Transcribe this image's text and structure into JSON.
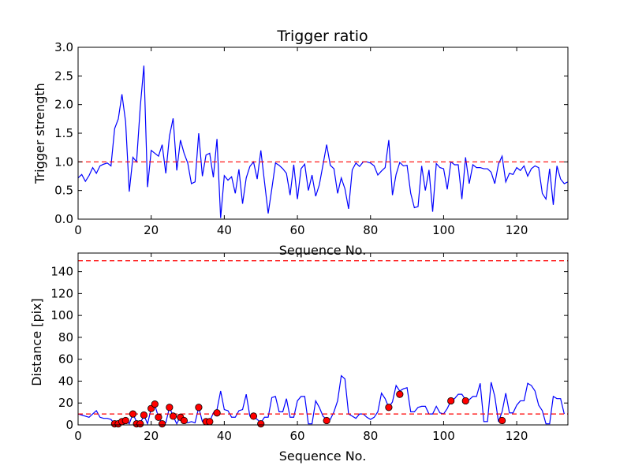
{
  "chart_data": [
    {
      "type": "line",
      "title": "Trigger ratio",
      "xlabel": "Sequence No.",
      "ylabel": "Trigger strength",
      "xlim": [
        0,
        134
      ],
      "ylim": [
        0,
        3.0
      ],
      "xticks": [
        0,
        20,
        40,
        60,
        80,
        100,
        120
      ],
      "yticks": [
        0.0,
        0.5,
        1.0,
        1.5,
        2.0,
        2.5,
        3.0
      ],
      "ytick_labels": [
        "0.0",
        "0.5",
        "1.0",
        "1.5",
        "2.0",
        "2.5",
        "3.0"
      ],
      "grid": false,
      "series": [
        {
          "style": "line",
          "color": "#0000ff",
          "values": [
            0.72,
            0.78,
            0.66,
            0.76,
            0.9,
            0.8,
            0.93,
            0.96,
            0.98,
            0.93,
            1.58,
            1.75,
            2.18,
            1.7,
            0.48,
            1.08,
            1.0,
            1.95,
            2.68,
            0.56,
            1.2,
            1.15,
            1.1,
            1.3,
            0.8,
            1.45,
            1.76,
            0.85,
            1.38,
            1.15,
            0.98,
            0.62,
            0.65,
            1.5,
            0.75,
            1.12,
            1.15,
            0.73,
            1.4,
            0.02,
            0.76,
            0.68,
            0.74,
            0.45,
            0.87,
            0.27,
            0.72,
            0.92,
            1.0,
            0.7,
            1.2,
            0.65,
            0.1,
            0.53,
            0.98,
            0.94,
            0.88,
            0.8,
            0.42,
            0.95,
            0.35,
            0.88,
            0.96,
            0.5,
            0.77,
            0.4,
            0.6,
            0.95,
            1.3,
            0.94,
            0.88,
            0.45,
            0.72,
            0.53,
            0.18,
            0.86,
            0.98,
            0.92,
            1.0,
            1.0,
            0.98,
            0.93,
            0.77,
            0.84,
            0.9,
            1.38,
            0.42,
            0.78,
            0.99,
            0.93,
            0.94,
            0.45,
            0.2,
            0.22,
            0.93,
            0.5,
            0.86,
            0.13,
            0.97,
            0.9,
            0.88,
            0.52,
            1.0,
            0.95,
            0.95,
            0.35,
            1.08,
            0.62,
            0.95,
            0.9,
            0.9,
            0.88,
            0.88,
            0.82,
            0.62,
            0.96,
            1.1,
            0.65,
            0.8,
            0.78,
            0.9,
            0.85,
            0.93,
            0.75,
            0.88,
            0.93,
            0.9,
            0.45,
            0.35,
            0.88,
            0.25,
            0.93,
            0.7,
            0.62,
            0.65
          ]
        },
        {
          "style": "dashed",
          "color": "#ff0000",
          "constant": 1.0
        }
      ]
    },
    {
      "type": "line",
      "title": "",
      "xlabel": "Sequence No.",
      "ylabel": "Distance [pix]",
      "xlim": [
        0,
        134
      ],
      "ylim": [
        0,
        157
      ],
      "xticks": [
        0,
        20,
        40,
        60,
        80,
        100,
        120
      ],
      "yticks": [
        0,
        20,
        40,
        60,
        80,
        100,
        120,
        140
      ],
      "ytick_labels": [
        "0",
        "20",
        "40",
        "60",
        "80",
        "100",
        "120",
        "140"
      ],
      "grid": false,
      "series": [
        {
          "style": "line",
          "color": "#0000ff",
          "values": [
            10,
            9,
            8,
            7,
            10,
            13,
            7,
            6,
            6,
            5,
            1,
            1,
            4,
            4,
            1,
            10,
            3,
            1,
            9,
            1,
            15,
            18,
            7,
            1,
            2,
            16,
            8,
            1,
            8,
            4,
            2,
            3,
            2,
            16,
            3,
            3,
            3,
            11,
            14,
            31,
            14,
            13,
            7,
            7,
            13,
            14,
            28,
            8,
            8,
            5,
            2,
            7,
            7,
            25,
            26,
            12,
            12,
            24,
            7,
            7,
            22,
            26,
            26,
            1,
            1,
            22,
            16,
            8,
            5,
            5,
            12,
            22,
            45,
            42,
            10,
            8,
            6,
            10,
            10,
            7,
            5,
            7,
            12,
            29,
            24,
            16,
            21,
            36,
            31,
            33,
            34,
            12,
            12,
            16,
            17,
            17,
            10,
            10,
            17,
            11,
            10,
            15,
            22,
            24,
            28,
            28,
            23,
            23,
            26,
            26,
            38,
            3,
            3,
            39,
            26,
            3,
            12,
            29,
            11,
            11,
            18,
            22,
            22,
            38,
            36,
            31,
            18,
            13,
            1,
            1,
            26,
            24,
            24,
            10
          ]
        },
        {
          "style": "markers",
          "color": "#ff0000",
          "points": [
            [
              10,
              1
            ],
            [
              11,
              1
            ],
            [
              12,
              3
            ],
            [
              13,
              4
            ],
            [
              15,
              10
            ],
            [
              16,
              1
            ],
            [
              17,
              1
            ],
            [
              18,
              9
            ],
            [
              20,
              15
            ],
            [
              21,
              19
            ],
            [
              22,
              7
            ],
            [
              23,
              1
            ],
            [
              25,
              16
            ],
            [
              26,
              8
            ],
            [
              28,
              7
            ],
            [
              29,
              4
            ],
            [
              33,
              16
            ],
            [
              35,
              3
            ],
            [
              36,
              3
            ],
            [
              38,
              11
            ],
            [
              48,
              8
            ],
            [
              50,
              1
            ],
            [
              68,
              4
            ],
            [
              85,
              16
            ],
            [
              88,
              28
            ],
            [
              102,
              22
            ],
            [
              106,
              22
            ],
            [
              116,
              4
            ]
          ]
        },
        {
          "style": "dashed",
          "color": "#ff0000",
          "constant": 10
        },
        {
          "style": "dashed",
          "color": "#ff0000",
          "constant": 150
        }
      ]
    }
  ]
}
